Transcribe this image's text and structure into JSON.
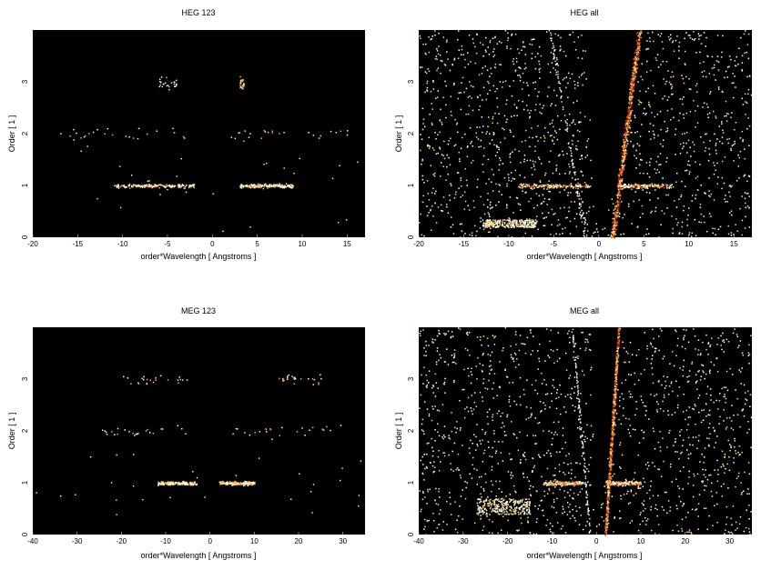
{
  "chart_data": [
    {
      "type": "scatter",
      "title": "HEG 123",
      "xlabel": "order*Wavelength [ Angstroms ]",
      "ylabel": "Order [ 1 ]",
      "xlim": [
        -20,
        17
      ],
      "ylim": [
        0,
        4
      ],
      "xticks": [
        -20,
        -15,
        -10,
        -5,
        0,
        5,
        10,
        15
      ],
      "yticks": [
        0,
        1,
        2,
        3
      ],
      "background": "#000000",
      "point_colors": [
        "#ffffff",
        "#fff2c0",
        "#f6b040"
      ],
      "bands": [
        {
          "y": 1.0,
          "x_ranges": [
            [
              -11,
              -2
            ],
            [
              3,
              9
            ]
          ],
          "density": "medium"
        },
        {
          "y": 2.0,
          "x_ranges": [
            [
              -18,
              -3
            ],
            [
              2,
              15
            ]
          ],
          "density": "sparse"
        },
        {
          "y": 3.0,
          "x_ranges": [
            [
              -6,
              -4
            ],
            [
              3,
              3.5
            ]
          ],
          "density": "sparse"
        }
      ]
    },
    {
      "type": "scatter",
      "title": "HEG all",
      "xlabel": "order*Wavelength [ Angstroms ]",
      "ylabel": "Order [ 1 ]",
      "xlim": [
        -20,
        17
      ],
      "ylim": [
        0,
        4
      ],
      "xticks": [
        -20,
        -15,
        -10,
        -5,
        0,
        5,
        10,
        15
      ],
      "yticks": [
        0,
        1,
        2,
        3
      ],
      "background": "#000000",
      "point_colors": [
        "#ffffff",
        "#ffe080",
        "#f07010",
        "#b02000"
      ],
      "features": [
        {
          "kind": "scatter-cloud",
          "x_range": [
            -20,
            17
          ],
          "y_range": [
            0,
            4
          ],
          "density": "high"
        },
        {
          "kind": "wedge-streak",
          "from": [
            1.5,
            0
          ],
          "to": [
            4.5,
            4
          ],
          "colors": "orange-red"
        },
        {
          "kind": "band",
          "y": 1.0,
          "x_ranges": [
            [
              -9,
              -1
            ],
            [
              2,
              8
            ]
          ]
        },
        {
          "kind": "cluster",
          "x_range": [
            -13,
            -7
          ],
          "y_range": [
            0.2,
            0.35
          ]
        }
      ]
    },
    {
      "type": "scatter",
      "title": "MEG 123",
      "xlabel": "order*Wavelength [ Angstroms ]",
      "ylabel": "Order [ 1 ]",
      "xlim": [
        -40,
        35
      ],
      "ylim": [
        0,
        4
      ],
      "xticks": [
        -40,
        -30,
        -20,
        -10,
        0,
        10,
        20,
        30
      ],
      "yticks": [
        0,
        1,
        2,
        3
      ],
      "background": "#000000",
      "point_colors": [
        "#ffffff",
        "#fff2c0",
        "#f6b040"
      ],
      "bands": [
        {
          "y": 1.0,
          "x_ranges": [
            [
              -12,
              -3
            ],
            [
              2,
              10
            ]
          ],
          "density": "medium"
        },
        {
          "y": 2.0,
          "x_ranges": [
            [
              -25,
              -5
            ],
            [
              5,
              30
            ]
          ],
          "density": "sparse"
        },
        {
          "y": 3.0,
          "x_ranges": [
            [
              -20,
              -5
            ],
            [
              15,
              25
            ]
          ],
          "density": "sparse"
        }
      ]
    },
    {
      "type": "scatter",
      "title": "MEG all",
      "xlabel": "order*Wavelength [ Angstroms ]",
      "ylabel": "Order [ 1 ]",
      "xlim": [
        -40,
        35
      ],
      "ylim": [
        0,
        4
      ],
      "xticks": [
        -40,
        -30,
        -20,
        -10,
        0,
        10,
        20,
        30
      ],
      "yticks": [
        0,
        1,
        2,
        3
      ],
      "background": "#000000",
      "point_colors": [
        "#ffffff",
        "#ffe080",
        "#f07010",
        "#b02000"
      ],
      "features": [
        {
          "kind": "scatter-cloud",
          "x_range": [
            -40,
            35
          ],
          "y_range": [
            0,
            4
          ],
          "density": "high"
        },
        {
          "kind": "wedge-streak",
          "from": [
            2,
            0
          ],
          "to": [
            5,
            4
          ],
          "colors": "orange-red"
        },
        {
          "kind": "band",
          "y": 1.0,
          "x_ranges": [
            [
              -12,
              -3
            ],
            [
              2,
              10
            ]
          ]
        },
        {
          "kind": "cluster",
          "x_range": [
            -27,
            -15
          ],
          "y_range": [
            0.4,
            0.7
          ]
        }
      ]
    }
  ]
}
